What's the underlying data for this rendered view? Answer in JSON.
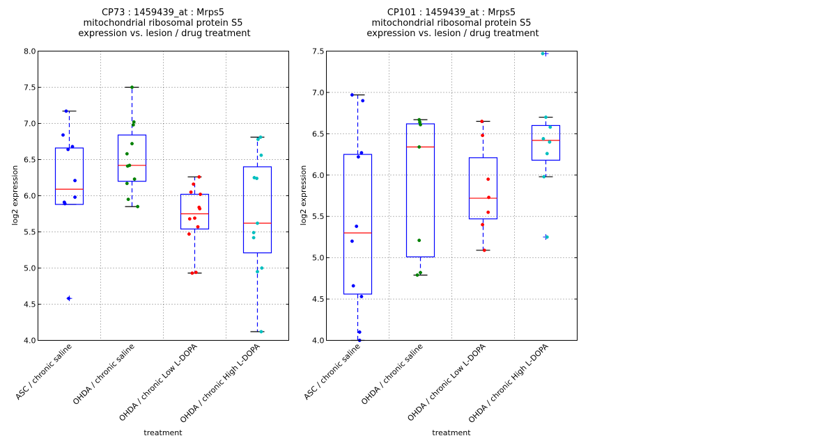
{
  "chart_data": [
    {
      "type": "box",
      "title_lines": [
        "CP73 : 1459439_at : Mrps5",
        "mitochondrial ribosomal protein S5",
        "expression vs. lesion / drug treatment"
      ],
      "xlabel": "treatment",
      "ylabel": "log2 expression",
      "ylim": [
        4.0,
        8.0
      ],
      "yticks": [
        "4.0",
        "4.5",
        "5.0",
        "5.5",
        "6.0",
        "6.5",
        "7.0",
        "7.5",
        "8.0"
      ],
      "grid": true,
      "categories": [
        "ASC / chronic saline",
        "OHDA / chronic saline",
        "OHDA / chronic Low L-DOPA",
        "OHDA / chronic High L-DOPA"
      ],
      "colors": [
        "#0000ff",
        "#008000",
        "#ff0000",
        "#00bfbf"
      ],
      "boxes": [
        {
          "whisker_low": 5.88,
          "q1": 5.88,
          "median": 6.09,
          "q3": 6.66,
          "whisker_high": 7.17,
          "outliers": [
            4.58
          ]
        },
        {
          "whisker_low": 5.85,
          "q1": 6.2,
          "median": 6.42,
          "q3": 6.84,
          "whisker_high": 7.5,
          "outliers": []
        },
        {
          "whisker_low": 4.93,
          "q1": 5.54,
          "median": 5.75,
          "q3": 6.02,
          "whisker_high": 6.26,
          "outliers": []
        },
        {
          "whisker_low": 4.12,
          "q1": 5.21,
          "median": 5.62,
          "q3": 6.4,
          "whisker_high": 6.81,
          "outliers": []
        }
      ],
      "points": [
        [
          7.17,
          6.84,
          6.64,
          6.68,
          6.21,
          5.98,
          5.91,
          5.89,
          4.58
        ],
        [
          7.5,
          7.02,
          6.98,
          6.72,
          6.58,
          6.42,
          6.41,
          6.23,
          6.17,
          5.95,
          5.85
        ],
        [
          6.26,
          6.16,
          6.05,
          6.02,
          5.84,
          5.82,
          5.69,
          5.68,
          5.57,
          5.47,
          4.93,
          4.94
        ],
        [
          6.81,
          6.78,
          6.56,
          6.25,
          6.24,
          5.62,
          5.49,
          5.42,
          5.0,
          4.95,
          4.12
        ]
      ],
      "jitter": [
        [
          -0.05,
          -0.1,
          -0.02,
          0.05,
          0.09,
          0.09,
          -0.08,
          -0.07,
          -0.01
        ],
        [
          0.0,
          0.03,
          0.02,
          0.0,
          -0.08,
          -0.04,
          -0.07,
          0.04,
          -0.08,
          -0.06,
          0.09
        ],
        [
          0.07,
          -0.02,
          -0.06,
          0.09,
          0.07,
          0.08,
          0.0,
          -0.08,
          0.05,
          -0.09,
          -0.04,
          0.02
        ],
        [
          0.05,
          0.01,
          0.06,
          -0.05,
          -0.01,
          0.0,
          -0.06,
          -0.06,
          0.07,
          0.0,
          0.06
        ]
      ]
    },
    {
      "type": "box",
      "title_lines": [
        "CP101 : 1459439_at : Mrps5",
        "mitochondrial ribosomal protein S5",
        "expression vs. lesion / drug treatment"
      ],
      "xlabel": "treatment",
      "ylabel": "log2 expression",
      "ylim": [
        4.0,
        7.5
      ],
      "yticks": [
        "4.0",
        "4.5",
        "5.0",
        "5.5",
        "6.0",
        "6.5",
        "7.0",
        "7.5"
      ],
      "grid": true,
      "categories": [
        "ASC / chronic saline",
        "OHDA / chronic saline",
        "OHDA / chronic Low L-DOPA",
        "OHDA / chronic High L-DOPA"
      ],
      "colors": [
        "#0000ff",
        "#008000",
        "#ff0000",
        "#00bfbf"
      ],
      "boxes": [
        {
          "whisker_low": 4.0,
          "q1": 4.56,
          "median": 5.3,
          "q3": 6.25,
          "whisker_high": 6.97,
          "outliers": []
        },
        {
          "whisker_low": 4.79,
          "q1": 5.01,
          "median": 6.34,
          "q3": 6.62,
          "whisker_high": 6.67,
          "outliers": []
        },
        {
          "whisker_low": 5.09,
          "q1": 5.47,
          "median": 5.72,
          "q3": 6.21,
          "whisker_high": 6.65,
          "outliers": []
        },
        {
          "whisker_low": 5.98,
          "q1": 6.18,
          "median": 6.42,
          "q3": 6.6,
          "whisker_high": 6.7,
          "outliers": [
            7.47,
            5.25
          ]
        }
      ],
      "points": [
        [
          6.97,
          6.9,
          6.27,
          6.22,
          5.38,
          5.2,
          4.66,
          4.53,
          4.1,
          4.0
        ],
        [
          6.67,
          6.64,
          6.61,
          6.34,
          5.21,
          4.82,
          4.79
        ],
        [
          6.65,
          6.48,
          5.95,
          5.73,
          5.55,
          5.4,
          5.09
        ],
        [
          7.47,
          6.7,
          6.58,
          6.44,
          6.4,
          6.26,
          5.98,
          5.25
        ]
      ],
      "jitter": [
        [
          -0.09,
          0.08,
          0.06,
          0.01,
          -0.02,
          -0.09,
          -0.07,
          0.06,
          0.03,
          0.03
        ],
        [
          -0.02,
          -0.01,
          0.0,
          -0.02,
          -0.02,
          0.0,
          -0.05
        ],
        [
          -0.02,
          -0.01,
          0.08,
          0.09,
          0.08,
          -0.01,
          0.02
        ],
        [
          -0.05,
          0.0,
          0.07,
          -0.04,
          0.06,
          0.02,
          -0.03,
          0.02
        ]
      ]
    }
  ]
}
